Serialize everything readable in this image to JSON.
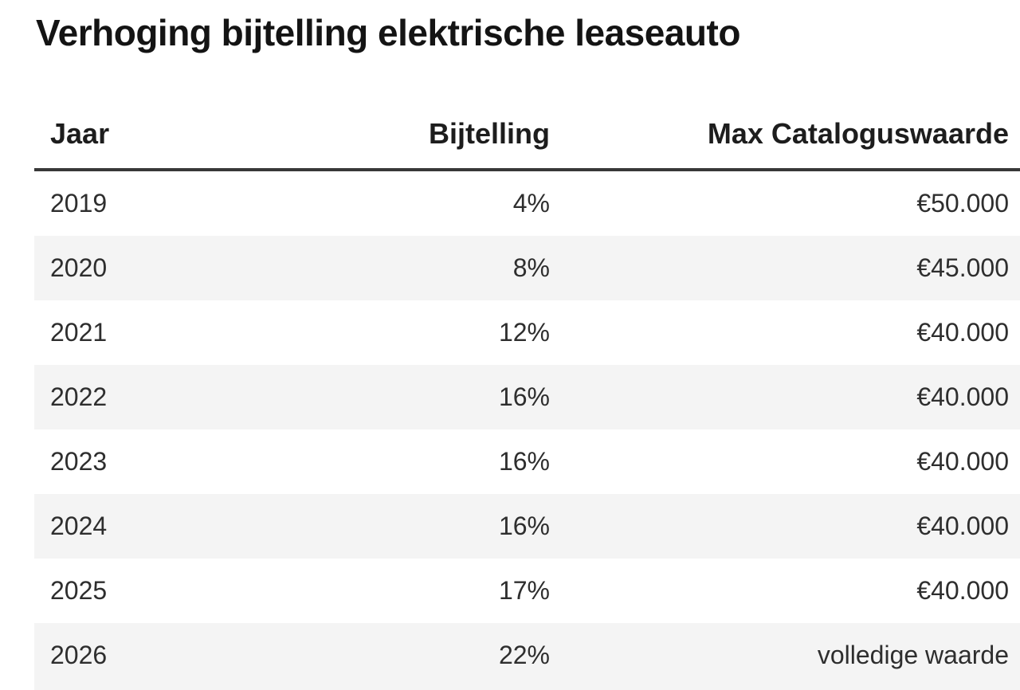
{
  "title": "Verhoging bijtelling elektrische leaseauto",
  "table": {
    "columns": [
      "Jaar",
      "Bijtelling",
      "Max Cataloguswaarde"
    ],
    "rows": [
      [
        "2019",
        "4%",
        "€50.000"
      ],
      [
        "2020",
        "8%",
        "€45.000"
      ],
      [
        "2021",
        "12%",
        "€40.000"
      ],
      [
        "2022",
        "16%",
        "€40.000"
      ],
      [
        "2023",
        "16%",
        "€40.000"
      ],
      [
        "2024",
        "16%",
        "€40.000"
      ],
      [
        "2025",
        "17%",
        "€40.000"
      ],
      [
        "2026",
        "22%",
        "volledige waarde"
      ]
    ]
  },
  "chart_data": {
    "type": "table",
    "title": "Verhoging bijtelling elektrische leaseauto",
    "columns": [
      "Jaar",
      "Bijtelling",
      "Max Cataloguswaarde"
    ],
    "categories": [
      "2019",
      "2020",
      "2021",
      "2022",
      "2023",
      "2024",
      "2025",
      "2026"
    ],
    "series": [
      {
        "name": "Bijtelling (%)",
        "values": [
          4,
          8,
          12,
          16,
          16,
          16,
          17,
          22
        ]
      },
      {
        "name": "Max Cataloguswaarde (EUR)",
        "values": [
          50000,
          45000,
          40000,
          40000,
          40000,
          40000,
          40000,
          "volledige waarde"
        ]
      }
    ],
    "rows": [
      [
        "2019",
        "4%",
        "€50.000"
      ],
      [
        "2020",
        "8%",
        "€45.000"
      ],
      [
        "2021",
        "12%",
        "€40.000"
      ],
      [
        "2022",
        "16%",
        "€40.000"
      ],
      [
        "2023",
        "16%",
        "€40.000"
      ],
      [
        "2024",
        "16%",
        "€40.000"
      ],
      [
        "2025",
        "17%",
        "€40.000"
      ],
      [
        "2026",
        "22%",
        "volledige waarde"
      ]
    ]
  },
  "colors": {
    "row_alt_background": "#f4f4f4",
    "header_border": "#383838",
    "text": "#2e2e2e",
    "heading_text": "#141414"
  }
}
